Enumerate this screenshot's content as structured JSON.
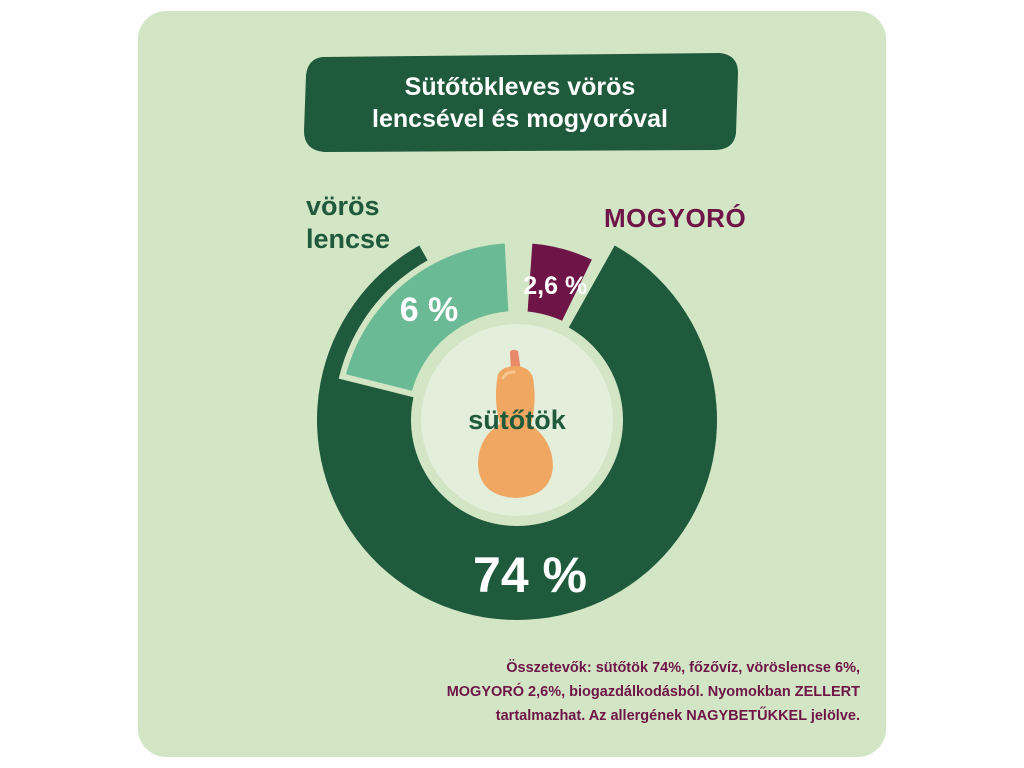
{
  "title": [
    "Sütőtökleves vörös",
    "lencsével és mogyoróval"
  ],
  "colors": {
    "card": "#d2e5c5",
    "dark_green": "#1f5a3c",
    "light_green": "#6aba95",
    "plum": "#6e1447",
    "center": "#e3eedb"
  },
  "center_label": "sütőtök",
  "center_icon": "butternut-squash-icon",
  "chart_data": {
    "type": "pie",
    "title": "Sütőtökleves vörös lencsével és mogyoróval",
    "slices": [
      {
        "name": "sütőtök",
        "value": 74,
        "label": "74 %",
        "color": "#1f5a3c"
      },
      {
        "name": "vörös lencse",
        "value": 6,
        "label": "6 %",
        "color": "#6aba95"
      },
      {
        "name": "MOGYORÓ",
        "value": 2.6,
        "label": "2,6 %",
        "color": "#6e1447"
      }
    ],
    "legend": "labels beside slices"
  },
  "labels": {
    "lentil": [
      "vörös",
      "lencse"
    ],
    "nut": "MOGYORÓ"
  },
  "footnote": [
    "Összetevők: sütőtök 74%, főzővíz, vöröslencse 6%,",
    "MOGYORÓ 2,6%, biogazdálkodásból. Nyomokban ZELLERT",
    "tartalmazhat. Az allergének NAGYBETŰKKEL jelölve."
  ]
}
